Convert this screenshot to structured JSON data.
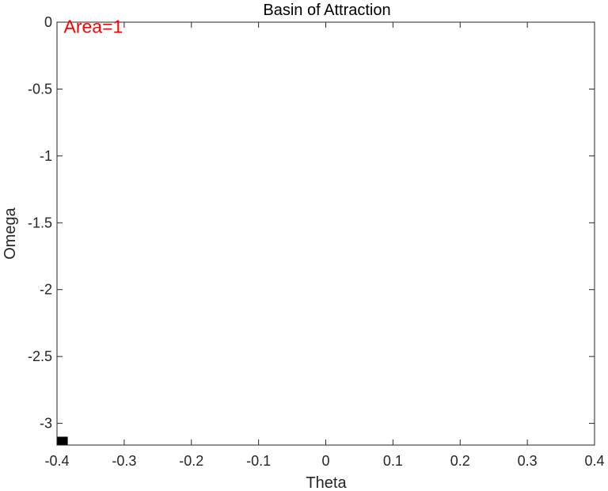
{
  "chart_data": {
    "type": "heatmap",
    "title": "Basin of Attraction",
    "xlabel": "Theta",
    "ylabel": "Omega",
    "xlim": [
      -0.4,
      0.4
    ],
    "ylim": [
      -3.1623,
      0
    ],
    "x_ticks": [
      -0.4,
      -0.3,
      -0.2,
      -0.1,
      0,
      0.1,
      0.2,
      0.3,
      0.4
    ],
    "x_tick_labels": [
      "-0.4",
      "-0.3",
      "-0.2",
      "-0.1",
      "0",
      "0.1",
      "0.2",
      "0.3",
      "0.4"
    ],
    "y_ticks": [
      0,
      -0.5,
      -1,
      -1.5,
      -2,
      -2.5,
      -3
    ],
    "y_tick_labels": [
      "0",
      "-0.5",
      "-1",
      "-1.5",
      "-2",
      "-2.5",
      "-3"
    ],
    "grid": false,
    "box": true,
    "filled_cells": [
      {
        "theta": [
          -0.4,
          -0.384
        ],
        "omega": [
          -3.1623,
          -3.1
        ]
      }
    ],
    "cell_color": "#000000",
    "annotation": {
      "text": "Area=1",
      "x": -0.39,
      "y": -0.08,
      "color": "#ff0000"
    }
  }
}
